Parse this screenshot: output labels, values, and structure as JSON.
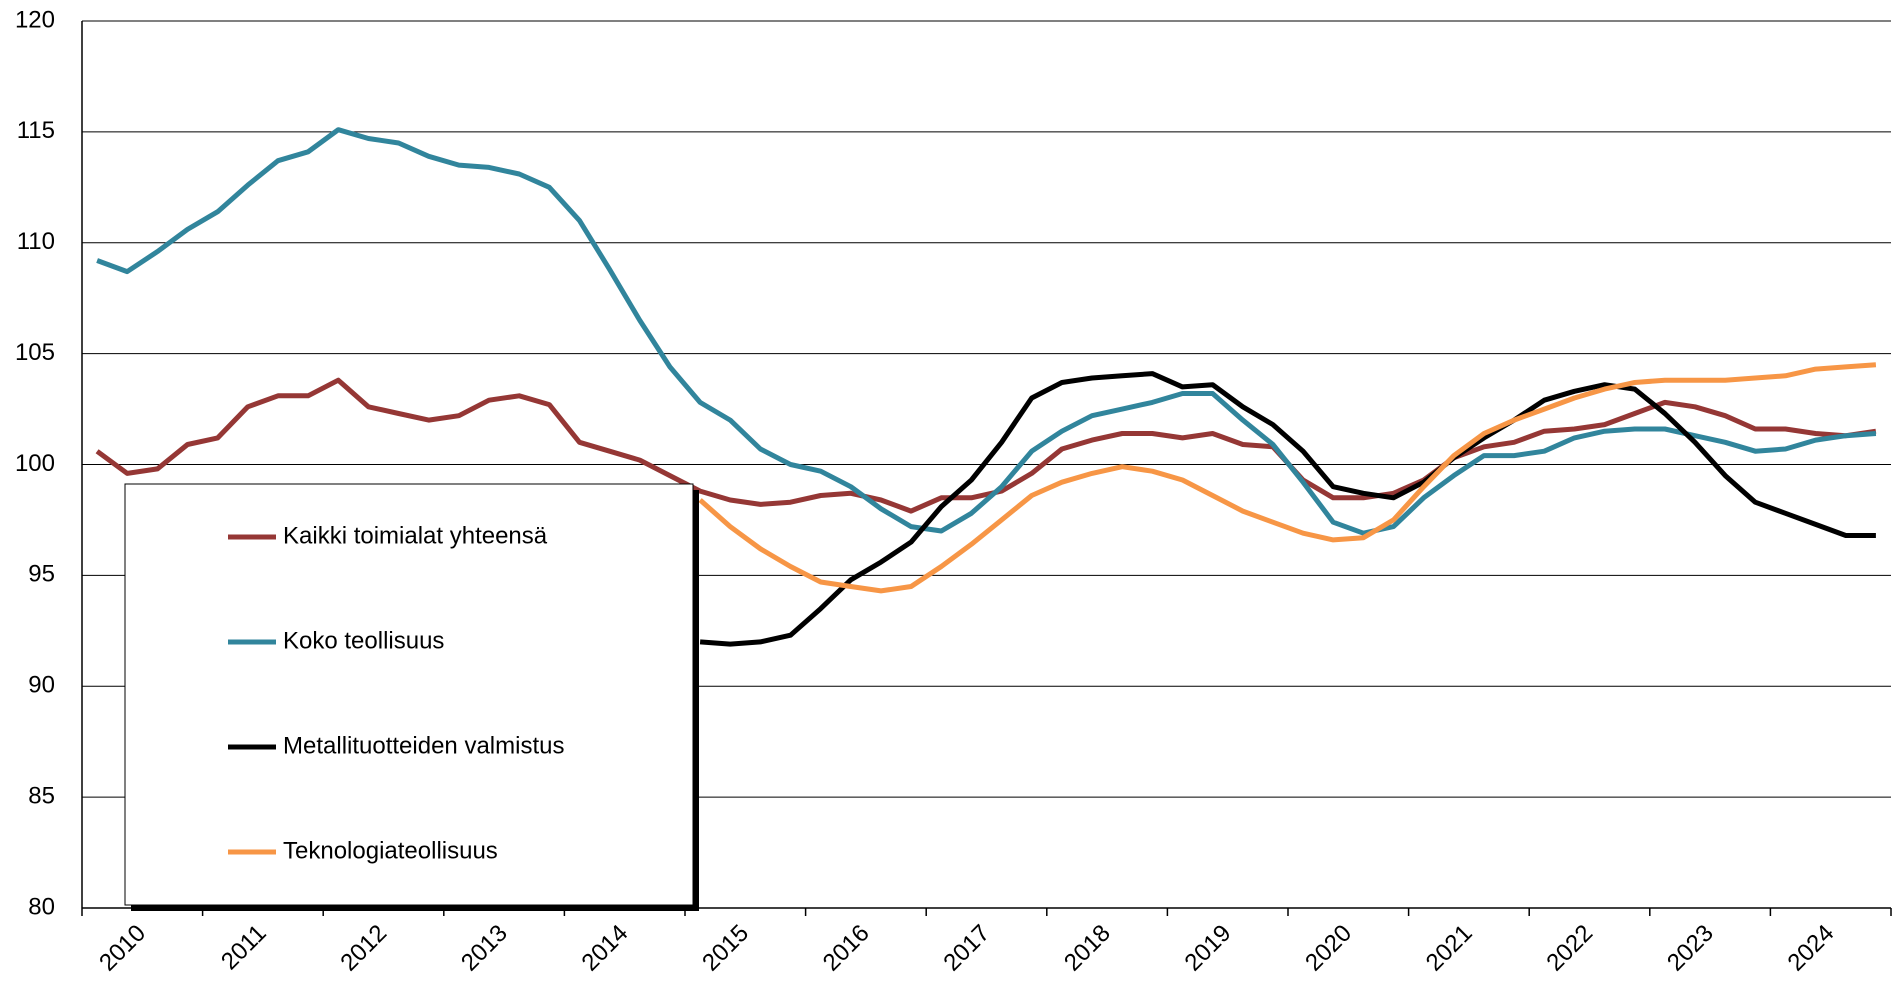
{
  "chart_data": {
    "type": "line",
    "categories": [
      "2010",
      null,
      null,
      null,
      "2011",
      null,
      null,
      null,
      "2012",
      null,
      null,
      null,
      "2013",
      null,
      null,
      null,
      "2014",
      null,
      null,
      null,
      "2015",
      null,
      null,
      null,
      "2016",
      null,
      null,
      null,
      "2017",
      null,
      null,
      null,
      "2018",
      null,
      null,
      null,
      "2019",
      null,
      null,
      null,
      "2020",
      null,
      null,
      null,
      "2021",
      null,
      null,
      null,
      "2022",
      null,
      null,
      null,
      "2023",
      null,
      null,
      null,
      "2024",
      null,
      null,
      null
    ],
    "series": [
      {
        "name": "Kaikki toimialat yhteensä",
        "color": "#953735",
        "values": [
          100.6,
          99.6,
          99.8,
          100.9,
          101.2,
          102.6,
          103.1,
          103.1,
          103.8,
          102.6,
          102.3,
          102.0,
          102.2,
          102.9,
          103.1,
          102.7,
          101.0,
          100.6,
          100.2,
          99.5,
          98.8,
          98.4,
          98.2,
          98.3,
          98.6,
          98.7,
          98.4,
          97.9,
          98.5,
          98.5,
          98.8,
          99.6,
          100.7,
          101.1,
          101.4,
          101.4,
          101.2,
          101.4,
          100.9,
          100.8,
          99.3,
          98.5,
          98.5,
          98.7,
          99.3,
          100.3,
          100.8,
          101.0,
          101.5,
          101.6,
          101.8,
          102.3,
          102.8,
          102.6,
          102.2,
          101.6,
          101.6,
          101.4,
          101.3,
          101.5
        ]
      },
      {
        "name": "Koko teollisuus",
        "color": "#31859c",
        "values": [
          109.2,
          108.7,
          109.6,
          110.6,
          111.4,
          112.6,
          113.7,
          114.1,
          115.1,
          114.7,
          114.5,
          113.9,
          113.5,
          113.4,
          113.1,
          112.5,
          111.0,
          108.8,
          106.5,
          104.4,
          102.8,
          102.0,
          100.7,
          100.0,
          99.7,
          99.0,
          98.0,
          97.2,
          97.0,
          97.8,
          99.0,
          100.6,
          101.5,
          102.2,
          102.5,
          102.8,
          103.2,
          103.2,
          102.0,
          100.9,
          99.2,
          97.4,
          96.9,
          97.2,
          98.5,
          99.5,
          100.4,
          100.4,
          100.6,
          101.2,
          101.5,
          101.6,
          101.6,
          101.3,
          101.0,
          100.6,
          100.7,
          101.1,
          101.3,
          101.4
        ]
      },
      {
        "name": "Metallituotteiden valmistus",
        "color": "#000000",
        "values": [
          null,
          null,
          null,
          null,
          null,
          null,
          null,
          null,
          null,
          null,
          null,
          null,
          null,
          null,
          null,
          null,
          null,
          null,
          null,
          null,
          92.0,
          91.9,
          92.0,
          92.3,
          93.5,
          94.8,
          95.6,
          96.5,
          98.1,
          99.3,
          101.0,
          103.0,
          103.7,
          103.9,
          104.0,
          104.1,
          103.5,
          103.6,
          102.6,
          101.8,
          100.6,
          99.0,
          98.7,
          98.5,
          99.2,
          100.3,
          101.2,
          102.0,
          102.9,
          103.3,
          103.6,
          103.4,
          102.3,
          101.0,
          99.5,
          98.3,
          97.8,
          97.3,
          96.8,
          96.8
        ]
      },
      {
        "name": "Teknologiateollisuus",
        "color": "#f79646",
        "values": [
          null,
          null,
          null,
          null,
          null,
          null,
          null,
          null,
          null,
          null,
          null,
          null,
          null,
          null,
          null,
          null,
          null,
          null,
          null,
          null,
          98.4,
          97.2,
          96.2,
          95.4,
          94.7,
          94.5,
          94.3,
          94.5,
          95.4,
          96.4,
          97.5,
          98.6,
          99.2,
          99.6,
          99.9,
          99.7,
          99.3,
          98.6,
          97.9,
          97.4,
          96.9,
          96.6,
          96.7,
          97.5,
          99.0,
          100.4,
          101.4,
          102.0,
          102.5,
          103.0,
          103.4,
          103.7,
          103.8,
          103.8,
          103.8,
          103.9,
          104.0,
          104.3,
          104.4,
          104.5
        ]
      }
    ],
    "ylim": [
      80,
      120
    ],
    "yticks": [
      80,
      85,
      90,
      95,
      100,
      105,
      110,
      115,
      120
    ],
    "grid": true
  }
}
